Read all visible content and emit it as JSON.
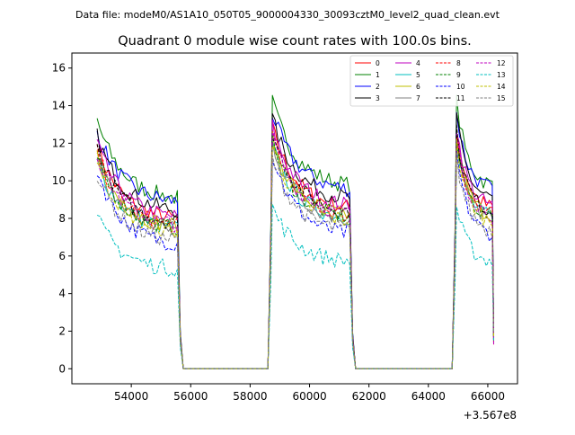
{
  "chart_data": {
    "type": "line",
    "suptitle": "Data file: modeM0/AS1A10_050T05_9000004330_30093cztM0_level2_quad_clean.evt",
    "title": "Quadrant 0 module wise count rates with 100.0s bins.",
    "xlabel": "",
    "ylabel": "",
    "x_offset_label": "+3.567e8",
    "xlim": [
      52000,
      67000
    ],
    "ylim": [
      -0.8,
      16.8
    ],
    "x_ticks": [
      54000,
      56000,
      58000,
      60000,
      62000,
      64000,
      66000
    ],
    "x_tick_labels": [
      "54000",
      "56000",
      "58000",
      "60000",
      "62000",
      "64000",
      "66000"
    ],
    "y_ticks": [
      0,
      2,
      4,
      6,
      8,
      10,
      12,
      14,
      16
    ],
    "y_tick_labels": [
      "0",
      "2",
      "4",
      "6",
      "8",
      "10",
      "12",
      "14",
      "16"
    ],
    "legend_position": "top-right",
    "segments": [
      {
        "start": 52850,
        "end": 55550
      },
      {
        "start": 58750,
        "end": 61350
      },
      {
        "start": 64950,
        "end": 66150
      }
    ],
    "series": [
      {
        "name": "0",
        "color": "#ff0000",
        "linestyle": "solid",
        "peak": 12.8,
        "end": 8.4
      },
      {
        "name": "1",
        "color": "#008000",
        "linestyle": "solid",
        "peak": 14.2,
        "end": 9.6
      },
      {
        "name": "2",
        "color": "#0000ff",
        "linestyle": "solid",
        "peak": 13.6,
        "end": 9.4
      },
      {
        "name": "3",
        "color": "#000000",
        "linestyle": "solid",
        "peak": 13.3,
        "end": 8.9
      },
      {
        "name": "4",
        "color": "#bf00bf",
        "linestyle": "solid",
        "peak": 12.9,
        "end": 8.5
      },
      {
        "name": "5",
        "color": "#00bfbf",
        "linestyle": "solid",
        "peak": 11.8,
        "end": 7.9
      },
      {
        "name": "6",
        "color": "#bfbf00",
        "linestyle": "solid",
        "peak": 12.2,
        "end": 8.0
      },
      {
        "name": "7",
        "color": "#808080",
        "linestyle": "solid",
        "peak": 12.0,
        "end": 7.8
      },
      {
        "name": "8",
        "color": "#ff0000",
        "linestyle": "dashed",
        "peak": 12.4,
        "end": 8.0
      },
      {
        "name": "9",
        "color": "#008000",
        "linestyle": "dashed",
        "peak": 12.1,
        "end": 7.9
      },
      {
        "name": "10",
        "color": "#0000ff",
        "linestyle": "dashed",
        "peak": 11.4,
        "end": 7.0
      },
      {
        "name": "11",
        "color": "#000000",
        "linestyle": "dashed",
        "peak": 12.6,
        "end": 8.2
      },
      {
        "name": "12",
        "color": "#bf00bf",
        "linestyle": "dashed",
        "peak": 12.3,
        "end": 8.1
      },
      {
        "name": "13",
        "color": "#00bfbf",
        "linestyle": "dashed",
        "peak": 8.6,
        "end": 5.6
      },
      {
        "name": "14",
        "color": "#bfbf00",
        "linestyle": "dashed",
        "peak": 11.9,
        "end": 7.7
      },
      {
        "name": "15",
        "color": "#808080",
        "linestyle": "dashed",
        "peak": 11.2,
        "end": 7.2
      }
    ]
  }
}
